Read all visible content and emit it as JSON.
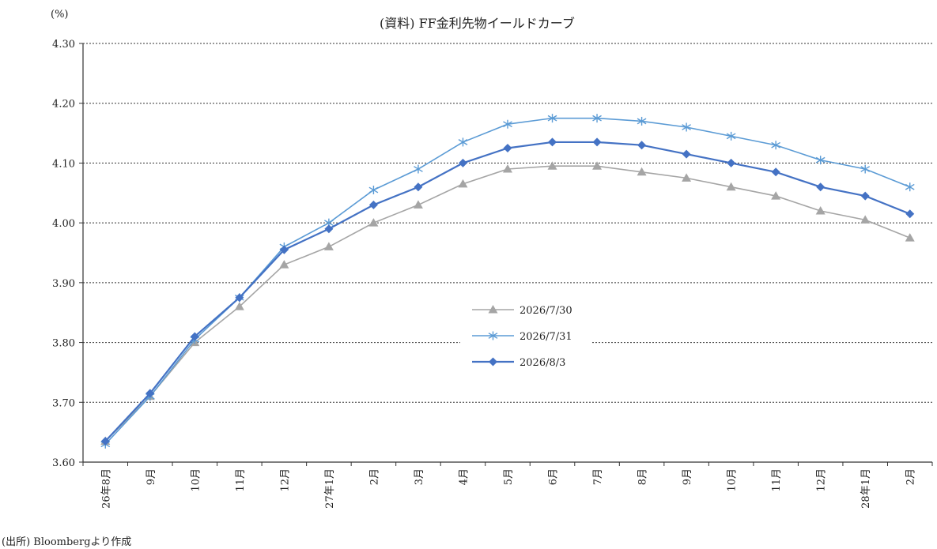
{
  "chart_data": {
    "type": "line",
    "title": "(資料) FF金利先物イールドカーブ",
    "unit_label": "(%)",
    "source_note": "(出所) Bloombergより作成",
    "xlabel": "",
    "ylabel": "",
    "ylim": [
      3.6,
      4.3
    ],
    "yticks": [
      "4.30",
      "4.20",
      "4.10",
      "4.00",
      "3.90",
      "3.80",
      "3.70",
      "3.60"
    ],
    "grid": "horizontal-dotted",
    "legend_position": "center",
    "categories": [
      "26年8月",
      "9月",
      "10月",
      "11月",
      "12月",
      "27年1月",
      "2月",
      "3月",
      "4月",
      "5月",
      "6月",
      "7月",
      "8月",
      "9月",
      "10月",
      "11月",
      "12月",
      "28年1月",
      "2月"
    ],
    "series": [
      {
        "name": "2026/7/30",
        "color": "#a5a5a5",
        "marker": "triangle",
        "values": [
          3.635,
          3.71,
          3.8,
          3.86,
          3.93,
          3.96,
          4.0,
          4.03,
          4.065,
          4.09,
          4.095,
          4.095,
          4.085,
          4.075,
          4.06,
          4.045,
          4.02,
          4.005,
          3.975
        ]
      },
      {
        "name": "2026/7/31",
        "color": "#5b9bd5",
        "marker": "star",
        "values": [
          3.63,
          3.71,
          3.805,
          3.875,
          3.96,
          4.0,
          4.055,
          4.09,
          4.135,
          4.165,
          4.175,
          4.175,
          4.17,
          4.16,
          4.145,
          4.13,
          4.105,
          4.09,
          4.06
        ]
      },
      {
        "name": "2026/8/3",
        "color": "#4472c4",
        "marker": "diamond",
        "values": [
          3.635,
          3.715,
          3.81,
          3.875,
          3.955,
          3.99,
          4.03,
          4.06,
          4.1,
          4.125,
          4.135,
          4.135,
          4.13,
          4.115,
          4.1,
          4.085,
          4.06,
          4.045,
          4.015
        ]
      }
    ]
  }
}
